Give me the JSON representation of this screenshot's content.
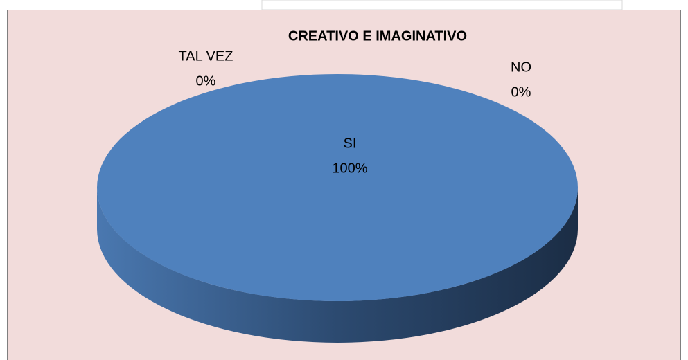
{
  "chart_data": {
    "type": "pie",
    "title": "CREATIVO E IMAGINATIVO",
    "categories": [
      "SI",
      "NO",
      "TAL VEZ"
    ],
    "values": [
      100,
      0,
      0
    ],
    "value_labels": [
      "100%",
      "0%",
      "0%"
    ],
    "colors": [
      "#4f81bd",
      "#c0504d",
      "#9bbb59"
    ]
  }
}
